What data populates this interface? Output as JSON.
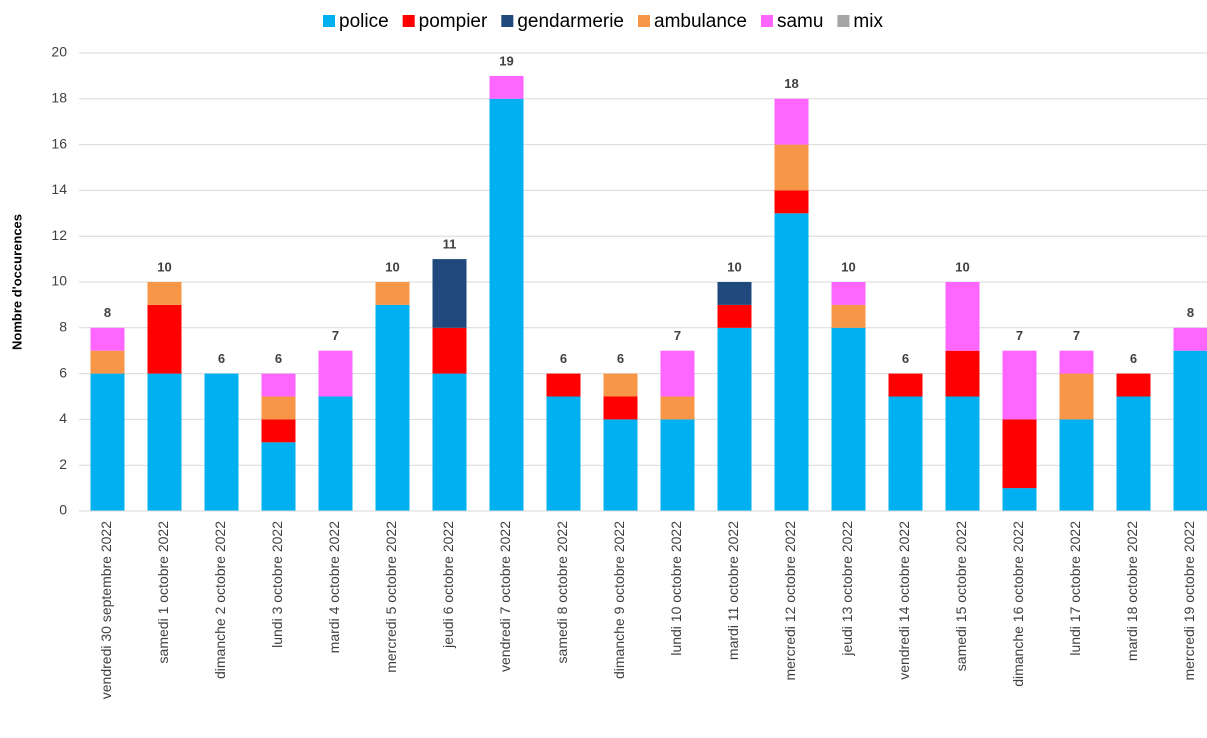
{
  "chart_data": {
    "type": "stacked_bar",
    "y_label": "Nombre d'occurences",
    "categories": [
      "vendredi 30 septembre 2022",
      "samedi 1 octobre 2022",
      "dimanche 2 octobre 2022",
      "lundi 3 octobre 2022",
      "mardi 4 octobre 2022",
      "mercredi 5 octobre 2022",
      "jeudi 6 octobre 2022",
      "vendredi 7 octobre 2022",
      "samedi 8 octobre 2022",
      "dimanche 9 octobre 2022",
      "lundi 10 octobre 2022",
      "mardi 11 octobre 2022",
      "mercredi 12 octobre 2022",
      "jeudi 13 octobre 2022",
      "vendredi 14 octobre 2022",
      "samedi 15 octobre 2022",
      "dimanche 16 octobre 2022",
      "lundi 17 octobre 2022",
      "mardi 18 octobre 2022",
      "mercredi 19 octobre 2022"
    ],
    "series": [
      {
        "name": "police",
        "color": "#00b0f0",
        "values": [
          6,
          6,
          6,
          3,
          5,
          9,
          6,
          18,
          5,
          4,
          4,
          8,
          13,
          8,
          5,
          5,
          1,
          4,
          5,
          7
        ]
      },
      {
        "name": "pompier",
        "color": "#ff0000",
        "values": [
          0,
          3,
          0,
          1,
          0,
          0,
          2,
          0,
          1,
          1,
          0,
          1,
          1,
          0,
          1,
          2,
          3,
          0,
          1,
          0
        ]
      },
      {
        "name": "gendarmerie",
        "color": "#1f497d",
        "values": [
          0,
          0,
          0,
          0,
          0,
          0,
          3,
          0,
          0,
          0,
          0,
          1,
          0,
          0,
          0,
          0,
          0,
          0,
          0,
          0
        ]
      },
      {
        "name": "ambulance",
        "color": "#f79646",
        "values": [
          1,
          1,
          0,
          1,
          0,
          1,
          0,
          0,
          0,
          1,
          1,
          0,
          2,
          1,
          0,
          0,
          0,
          2,
          0,
          0
        ]
      },
      {
        "name": "samu",
        "color": "#ff66ff",
        "values": [
          1,
          0,
          0,
          1,
          2,
          0,
          0,
          1,
          0,
          0,
          2,
          0,
          2,
          1,
          0,
          3,
          3,
          1,
          0,
          1
        ]
      },
      {
        "name": "mix",
        "color": "#a5a5a5",
        "values": [
          0,
          0,
          0,
          0,
          0,
          0,
          0,
          0,
          0,
          0,
          0,
          0,
          0,
          0,
          0,
          0,
          0,
          0,
          0,
          0
        ]
      }
    ],
    "totals": [
      8,
      10,
      6,
      6,
      7,
      10,
      11,
      19,
      6,
      6,
      7,
      10,
      18,
      10,
      6,
      10,
      7,
      7,
      6,
      8
    ],
    "ylim": [
      0,
      20
    ],
    "yticks": [
      0,
      2,
      4,
      6,
      8,
      10,
      12,
      14,
      16,
      18,
      20
    ],
    "grid": true,
    "legend": "top"
  }
}
